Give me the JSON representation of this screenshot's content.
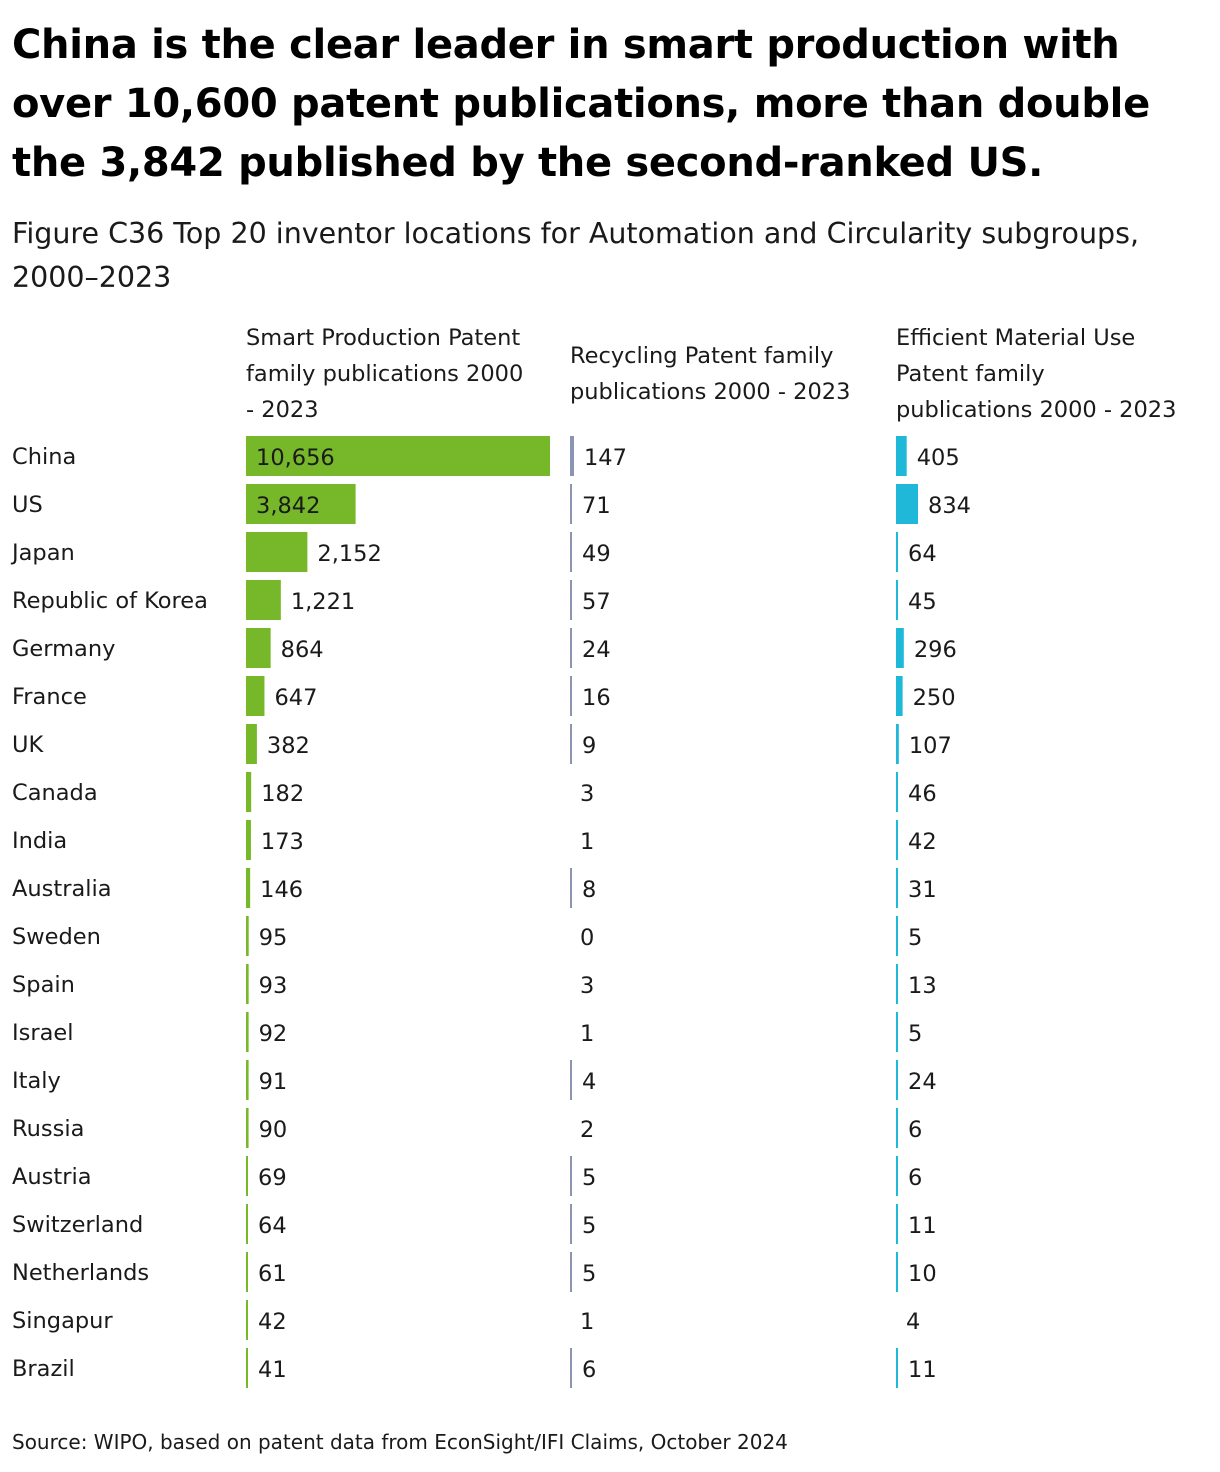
{
  "title": "China is the clear leader in smart production with over 10,600 patent publications, more than double the 3,842 published by the second-ranked US.",
  "subtitle": "Figure C36 Top 20 inventor locations for Automation and Circularity subgroups, 2000–2023",
  "source": "Source: WIPO, based on patent data from EconSight/IFI Claims, October 2024",
  "chart_data": {
    "type": "bar",
    "orientation": "horizontal",
    "categories": [
      "China",
      "US",
      "Japan",
      "Republic of Korea",
      "Germany",
      "France",
      "UK",
      "Canada",
      "India",
      "Australia",
      "Sweden",
      "Spain",
      "Israel",
      "Italy",
      "Russia",
      "Austria",
      "Switzerland",
      "Netherlands",
      "Singapur",
      "Brazil"
    ],
    "series": [
      {
        "name": "Smart Production Patent family publications 2000 - 2023",
        "color": "#76b82a",
        "values": [
          10656,
          3842,
          2152,
          1221,
          864,
          647,
          382,
          182,
          173,
          146,
          95,
          93,
          92,
          91,
          90,
          69,
          64,
          61,
          42,
          41
        ],
        "labels": [
          "10,656",
          "3,842",
          "2,152",
          "1,221",
          "864",
          "647",
          "382",
          "182",
          "173",
          "146",
          "95",
          "93",
          "92",
          "91",
          "90",
          "69",
          "64",
          "61",
          "42",
          "41"
        ]
      },
      {
        "name": "Recycling Patent family publications 2000 - 2023",
        "color": "#8a95b5",
        "values": [
          147,
          71,
          49,
          57,
          24,
          16,
          9,
          3,
          1,
          8,
          0,
          3,
          1,
          4,
          2,
          5,
          5,
          5,
          1,
          6
        ],
        "labels": [
          "147",
          "71",
          "49",
          "57",
          "24",
          "16",
          "9",
          "3",
          "1",
          "8",
          "0",
          "3",
          "1",
          "4",
          "2",
          "5",
          "5",
          "5",
          "1",
          "6"
        ]
      },
      {
        "name": "Efficient Material Use Patent family publications 2000 - 2023",
        "color": "#1fb8d8",
        "values": [
          405,
          834,
          64,
          45,
          296,
          250,
          107,
          46,
          42,
          31,
          5,
          13,
          5,
          24,
          6,
          6,
          11,
          10,
          4,
          11
        ],
        "labels": [
          "405",
          "834",
          "64",
          "45",
          "296",
          "250",
          "107",
          "46",
          "42",
          "31",
          "5",
          "13",
          "5",
          "24",
          "6",
          "6",
          "11",
          "10",
          "4",
          "11"
        ]
      }
    ],
    "legend": "none",
    "grid": false
  }
}
